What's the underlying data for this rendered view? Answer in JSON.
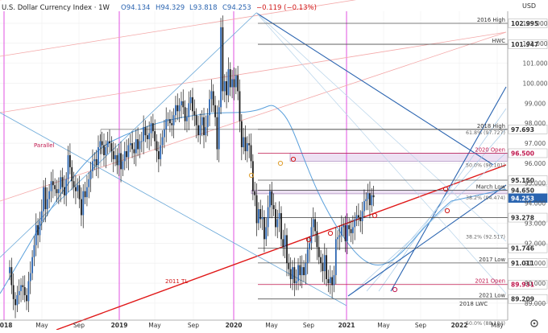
{
  "chart_data": {
    "type": "candlestick",
    "title": "U.S. Dollar Currency Index · 1W",
    "ohlc_label": {
      "o": "O94.134",
      "h": "H94.329",
      "l": "L93.818",
      "c": "C94.253",
      "chg": "−0.119 (−0.13%)"
    },
    "x_ticks": [
      "2018",
      "May",
      "Sep",
      "2019",
      "May",
      "Sep",
      "2020",
      "May",
      "Sep",
      "2021",
      "May",
      "Sep",
      "2022",
      "May"
    ],
    "y_ticks": [
      89.0,
      90.0,
      91.0,
      92.0,
      93.0,
      94.0,
      95.0,
      96.0,
      97.0,
      98.0,
      99.0,
      100.0,
      101.0,
      102.0,
      103.0
    ],
    "currency": "USD",
    "levels": [
      {
        "name": "2016 High",
        "value": 102.995,
        "label": "102.995",
        "bg": "#ffffff",
        "fg": "#333333",
        "line": "#555555"
      },
      {
        "name": "HWC",
        "value": 101.947,
        "label": "101.947",
        "bg": "#ffffff",
        "fg": "#333333",
        "line": "#555555"
      },
      {
        "name": "2018 High",
        "value": 97.693,
        "label": "97.693",
        "bg": "#ffffff",
        "fg": "#333333",
        "line": "#555555"
      },
      {
        "name": "2020 Open",
        "value": 96.5,
        "label": "96.500",
        "bg": "#ffffff",
        "fg": "#c0184e",
        "line": "#c0184e"
      },
      {
        "name": "",
        "value": 95.15,
        "label": "95.150",
        "bg": "#ffffff",
        "fg": "#333333",
        "line": "#555555"
      },
      {
        "name": "March Low",
        "value": 94.65,
        "label": "94.650",
        "bg": "#ffffff",
        "fg": "#333333",
        "line": "#555555"
      },
      {
        "name": "",
        "value": 94.253,
        "label": "94.253",
        "bg": "#2a64b0",
        "fg": "#ffffff",
        "line": "none"
      },
      {
        "name": "",
        "value": 93.278,
        "label": "93.278",
        "bg": "#ffffff",
        "fg": "#333333",
        "line": "#555555"
      },
      {
        "name": "",
        "value": 91.746,
        "label": "91.746",
        "bg": "#ffffff",
        "fg": "#333333",
        "line": "#555555"
      },
      {
        "name": "2017 Low",
        "value": 91.011,
        "label": "91.011",
        "bg": "#ffffff",
        "fg": "#333333",
        "line": "#555555"
      },
      {
        "name": "2021 Open",
        "value": 89.931,
        "label": "89.931",
        "bg": "#ffffff",
        "fg": "#c0184e",
        "line": "#c0184e"
      },
      {
        "name": "2021 Low",
        "value": 89.209,
        "label": "89.209",
        "bg": "#ffffff",
        "fg": "#333333",
        "line": "#555555"
      }
    ],
    "fib_labels": [
      {
        "text": "61.8% (97.727)",
        "value": 97.727
      },
      {
        "text": "50.0% (96.101)",
        "value": 96.101
      },
      {
        "text": "38.2% (94.474)",
        "value": 94.474
      },
      {
        "text": "38.2% (92.517)",
        "value": 92.517
      },
      {
        "text": "50.0% (88.184)",
        "value": 88.184
      }
    ],
    "annotations": [
      {
        "text": "Parallel",
        "color": "#c0184e"
      },
      {
        "text": "2011 TL",
        "color": "#d01818"
      },
      {
        "text": "2018 LWC",
        "color": "#333333"
      }
    ],
    "weekly_closes": [
      90.8,
      89.9,
      89.2,
      88.9,
      89.4,
      89.6,
      89.9,
      89.8,
      89.4,
      89.1,
      90.1,
      90.5,
      91.3,
      91.9,
      92.9,
      92.4,
      93.1,
      93.6,
      94.8,
      93.7,
      94.2,
      94.6,
      95.1,
      94.9,
      94.7,
      94.5,
      94.7,
      95.3,
      94.8,
      94.4,
      95.2,
      96.4,
      95.8,
      95.1,
      94.8,
      94.6,
      94.9,
      94.2,
      93.4,
      94.6,
      94.3,
      94.8,
      95.2,
      95.6,
      96.1,
      96.2,
      95.9,
      96.8,
      97.1,
      96.9,
      96.4,
      96.8,
      97.1,
      97.0,
      96.6,
      96.2,
      96.4,
      95.9,
      96.5,
      95.7,
      96.1,
      96.6,
      96.3,
      96.9,
      97.0,
      96.7,
      96.5,
      97.2,
      96.7,
      97.1,
      97.1,
      97.8,
      97.4,
      97.2,
      97.5,
      98.0,
      97.6,
      97.1,
      96.6,
      96.2,
      96.9,
      97.3,
      97.7,
      98.2,
      98.2,
      98.0,
      97.9,
      98.4,
      98.9,
      98.6,
      98.9,
      99.1,
      98.8,
      98.1,
      98.3,
      99.0,
      99.3,
      98.6,
      98.4,
      97.9,
      97.4,
      97.9,
      98.3,
      97.4,
      97.8,
      98.4,
      99.2,
      99.6,
      98.9,
      98.3,
      96.7,
      98.8,
      102.8,
      99.6,
      100.1,
      99.4,
      100.7,
      99.8,
      100.2,
      99.8,
      100.4,
      99.6,
      98.1,
      96.8,
      97.3,
      96.6,
      97.0,
      96.9,
      96.1,
      94.6,
      94.4,
      93.0,
      93.7,
      93.2,
      93.3,
      92.2,
      92.8,
      93.8,
      94.6,
      93.9,
      93.7,
      92.8,
      93.2,
      93.5,
      92.2,
      91.8,
      92.4,
      91.0,
      90.7,
      90.2,
      90.8,
      90.0,
      90.1,
      90.9,
      90.4,
      90.8,
      90.4,
      91.0,
      91.7,
      92.0,
      92.8,
      93.2,
      92.6,
      91.8,
      91.3,
      91.0,
      90.6,
      91.4,
      90.2,
      90.0,
      90.3,
      89.9,
      90.4,
      92.2,
      92.3,
      92.4,
      92.8,
      92.9,
      92.1,
      92.9,
      92.7,
      92.5,
      92.8,
      93.2,
      93.4,
      93.3,
      93.1,
      93.6,
      94.1,
      94.2,
      94.5,
      93.9,
      94.4,
      94.3
    ]
  }
}
